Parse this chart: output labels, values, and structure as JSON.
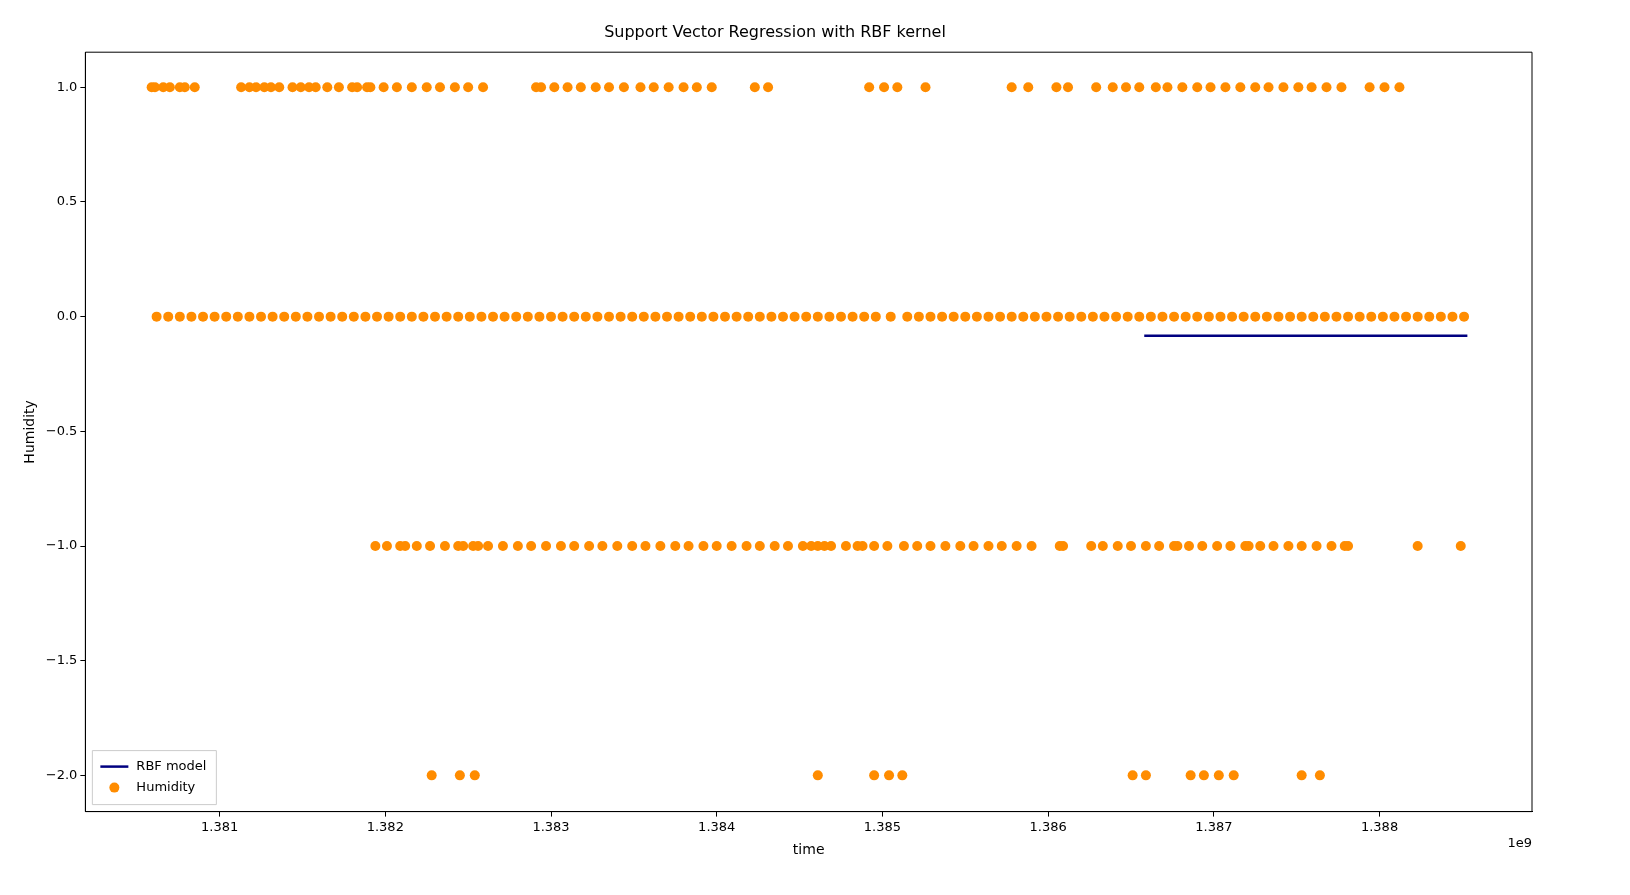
{
  "chart_data": {
    "type": "scatter",
    "title": "Support Vector Regression with RBF kernel",
    "xlabel": "time",
    "ylabel": "Humidity",
    "xlim": [
      1.38019,
      1.38892
    ],
    "xticks": [
      1.381,
      1.382,
      1.383,
      1.384,
      1.385,
      1.386,
      1.387,
      1.388
    ],
    "ylim": [
      -2.158,
      1.153
    ],
    "yticks": [
      {
        "value": -2,
        "label": "−2.0"
      },
      {
        "value": -1.5,
        "label": "−1.5"
      },
      {
        "value": -1,
        "label": "−1.0"
      },
      {
        "value": -0.5,
        "label": "−0.5"
      },
      {
        "value": 0,
        "label": "0.0"
      },
      {
        "value": 0.5,
        "label": "0.5"
      },
      {
        "value": 1,
        "label": "1.0"
      }
    ],
    "legend": "bottom left",
    "annotations": [
      "1e9"
    ],
    "series": [
      {
        "name": "RBF model",
        "type": "line",
        "color": "#000080",
        "marker": "none",
        "line_style": "solid",
        "x": [
          1.38658,
          1.38853
        ],
        "values": [
          -0.083,
          -0.083
        ]
      },
      {
        "name": "Humidity",
        "color": "#ff8c00",
        "marker": "circle",
        "x": [
          1.38059,
          1.38061,
          1.38066,
          1.3807,
          1.38076,
          1.38079,
          1.38085,
          1.38113,
          1.38118,
          1.38122,
          1.38127,
          1.38131,
          1.38136,
          1.38144,
          1.38149,
          1.38154,
          1.38158,
          1.38165,
          1.38172,
          1.3818,
          1.38183,
          1.38189,
          1.38191,
          1.38199,
          1.38207,
          1.38216,
          1.38225,
          1.38233,
          1.38242,
          1.3825,
          1.38259,
          1.38291,
          1.38294,
          1.38302,
          1.3831,
          1.38318,
          1.38327,
          1.38335,
          1.38344,
          1.38354,
          1.38362,
          1.38371,
          1.3838,
          1.38388,
          1.38397,
          1.38423,
          1.38431,
          1.38492,
          1.38501,
          1.38509,
          1.38526,
          1.38578,
          1.38588,
          1.38605,
          1.38612,
          1.38629,
          1.38639,
          1.38647,
          1.38655,
          1.38665,
          1.38672,
          1.38681,
          1.3869,
          1.38698,
          1.38707,
          1.38716,
          1.38725,
          1.38733,
          1.38742,
          1.38751,
          1.38759,
          1.38768,
          1.38777,
          1.38794,
          1.38803,
          1.38812,
          1.38062,
          1.38069,
          1.38076,
          1.38083,
          1.3809,
          1.38097,
          1.38104,
          1.38111,
          1.38118,
          1.38125,
          1.38132,
          1.38139,
          1.38146,
          1.38153,
          1.3816,
          1.38167,
          1.38174,
          1.38181,
          1.38188,
          1.38195,
          1.38202,
          1.38209,
          1.38216,
          1.38223,
          1.3823,
          1.38237,
          1.38244,
          1.38251,
          1.38258,
          1.38265,
          1.38272,
          1.38279,
          1.38286,
          1.38293,
          1.383,
          1.38307,
          1.38314,
          1.38321,
          1.38328,
          1.38335,
          1.38342,
          1.38349,
          1.38356,
          1.38363,
          1.3837,
          1.38377,
          1.38384,
          1.38391,
          1.38398,
          1.38405,
          1.38412,
          1.38419,
          1.38426,
          1.38433,
          1.3844,
          1.38447,
          1.38454,
          1.38461,
          1.38468,
          1.38475,
          1.38482,
          1.38489,
          1.38496,
          1.38505,
          1.38515,
          1.38522,
          1.38529,
          1.38536,
          1.38543,
          1.3855,
          1.38557,
          1.38564,
          1.38571,
          1.38578,
          1.38585,
          1.38592,
          1.38599,
          1.38606,
          1.38613,
          1.3862,
          1.38627,
          1.38634,
          1.38641,
          1.38648,
          1.38655,
          1.38662,
          1.38669,
          1.38676,
          1.38683,
          1.3869,
          1.38697,
          1.38704,
          1.38711,
          1.38718,
          1.38725,
          1.38732,
          1.38739,
          1.38746,
          1.38753,
          1.3876,
          1.38767,
          1.38774,
          1.38781,
          1.38788,
          1.38795,
          1.38802,
          1.38809,
          1.38816,
          1.38823,
          1.3883,
          1.38837,
          1.38844,
          1.38851,
          1.38194,
          1.38201,
          1.38209,
          1.38212,
          1.38219,
          1.38227,
          1.38236,
          1.38244,
          1.38247,
          1.38253,
          1.38256,
          1.38262,
          1.38271,
          1.3828,
          1.38288,
          1.38297,
          1.38306,
          1.38314,
          1.38323,
          1.38331,
          1.3834,
          1.38349,
          1.38357,
          1.38366,
          1.38375,
          1.38383,
          1.38392,
          1.384,
          1.38409,
          1.38418,
          1.38426,
          1.38435,
          1.38443,
          1.38452,
          1.38457,
          1.38461,
          1.38465,
          1.38469,
          1.38478,
          1.38485,
          1.38488,
          1.38495,
          1.38503,
          1.38513,
          1.38521,
          1.38529,
          1.38538,
          1.38547,
          1.38555,
          1.38564,
          1.38572,
          1.38581,
          1.3859,
          1.38607,
          1.38609,
          1.38626,
          1.38633,
          1.38642,
          1.3865,
          1.38659,
          1.38667,
          1.38676,
          1.38678,
          1.38685,
          1.38693,
          1.38702,
          1.3871,
          1.38719,
          1.38721,
          1.38728,
          1.38736,
          1.38745,
          1.38753,
          1.38762,
          1.38771,
          1.38779,
          1.38781,
          1.38823,
          1.38849,
          1.38228,
          1.38245,
          1.38254,
          1.38461,
          1.38495,
          1.38504,
          1.38512,
          1.38651,
          1.38659,
          1.38686,
          1.38694,
          1.38703,
          1.38712,
          1.38753,
          1.38764
        ],
        "values": [
          1,
          1,
          1,
          1,
          1,
          1,
          1,
          1,
          1,
          1,
          1,
          1,
          1,
          1,
          1,
          1,
          1,
          1,
          1,
          1,
          1,
          1,
          1,
          1,
          1,
          1,
          1,
          1,
          1,
          1,
          1,
          1,
          1,
          1,
          1,
          1,
          1,
          1,
          1,
          1,
          1,
          1,
          1,
          1,
          1,
          1,
          1,
          1,
          1,
          1,
          1,
          1,
          1,
          1,
          1,
          1,
          1,
          1,
          1,
          1,
          1,
          1,
          1,
          1,
          1,
          1,
          1,
          1,
          1,
          1,
          1,
          1,
          1,
          1,
          1,
          1,
          0,
          0,
          0,
          0,
          0,
          0,
          0,
          0,
          0,
          0,
          0,
          0,
          0,
          0,
          0,
          0,
          0,
          0,
          0,
          0,
          0,
          0,
          0,
          0,
          0,
          0,
          0,
          0,
          0,
          0,
          0,
          0,
          0,
          0,
          0,
          0,
          0,
          0,
          0,
          0,
          0,
          0,
          0,
          0,
          0,
          0,
          0,
          0,
          0,
          0,
          0,
          0,
          0,
          0,
          0,
          0,
          0,
          0,
          0,
          0,
          0,
          0,
          0,
          0,
          0,
          0,
          0,
          0,
          0,
          0,
          0,
          0,
          0,
          0,
          0,
          0,
          0,
          0,
          0,
          0,
          0,
          0,
          0,
          0,
          0,
          0,
          0,
          0,
          0,
          0,
          0,
          0,
          0,
          0,
          0,
          0,
          0,
          0,
          0,
          0,
          0,
          0,
          0,
          0,
          0,
          0,
          0,
          0,
          0,
          0,
          0,
          0,
          0,
          -1,
          -1,
          -1,
          -1,
          -1,
          -1,
          -1,
          -1,
          -1,
          -1,
          -1,
          -1,
          -1,
          -1,
          -1,
          -1,
          -1,
          -1,
          -1,
          -1,
          -1,
          -1,
          -1,
          -1,
          -1,
          -1,
          -1,
          -1,
          -1,
          -1,
          -1,
          -1,
          -1,
          -1,
          -1,
          -1,
          -1,
          -1,
          -1,
          -1,
          -1,
          -1,
          -1,
          -1,
          -1,
          -1,
          -1,
          -1,
          -1,
          -1,
          -1,
          -1,
          -1,
          -1,
          -1,
          -1,
          -1,
          -1,
          -1,
          -1,
          -1,
          -1,
          -1,
          -1,
          -1,
          -1,
          -1,
          -1,
          -1,
          -1,
          -1,
          -1,
          -1,
          -1,
          -1,
          -1,
          -1,
          -1,
          -1,
          -2,
          -2,
          -2,
          -2,
          -2,
          -2,
          -2,
          -2,
          -2,
          -2,
          -2,
          -2,
          -2,
          -2,
          -2
        ]
      }
    ]
  }
}
